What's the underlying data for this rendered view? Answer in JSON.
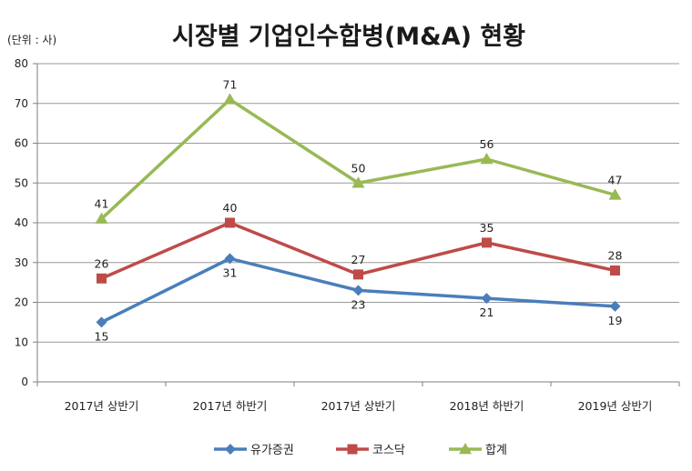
{
  "chart_data": {
    "type": "line",
    "title": "시장별 기업인수합병(M&A) 현황",
    "unit_label": "(단위 : 사)",
    "xlabel": "",
    "ylabel": "",
    "categories": [
      "2017년 상반기",
      "2017년 하반기",
      "2017년 상반기",
      "2018년 하반기",
      "2019년 상반기"
    ],
    "ylim": [
      0,
      80
    ],
    "yticks": [
      0,
      10,
      20,
      30,
      40,
      50,
      60,
      70,
      80
    ],
    "grid": true,
    "legend_position": "bottom",
    "series": [
      {
        "name": "유가증권",
        "values": [
          15,
          31,
          23,
          21,
          19
        ],
        "color": "#4a7ebb",
        "marker": "diamond",
        "label_position": "below"
      },
      {
        "name": "코스닥",
        "values": [
          26,
          40,
          27,
          35,
          28
        ],
        "color": "#be4b48",
        "marker": "square",
        "label_position": "above"
      },
      {
        "name": "합계",
        "values": [
          41,
          71,
          50,
          56,
          47
        ],
        "color": "#98b954",
        "marker": "triangle",
        "label_position": "above"
      }
    ]
  }
}
